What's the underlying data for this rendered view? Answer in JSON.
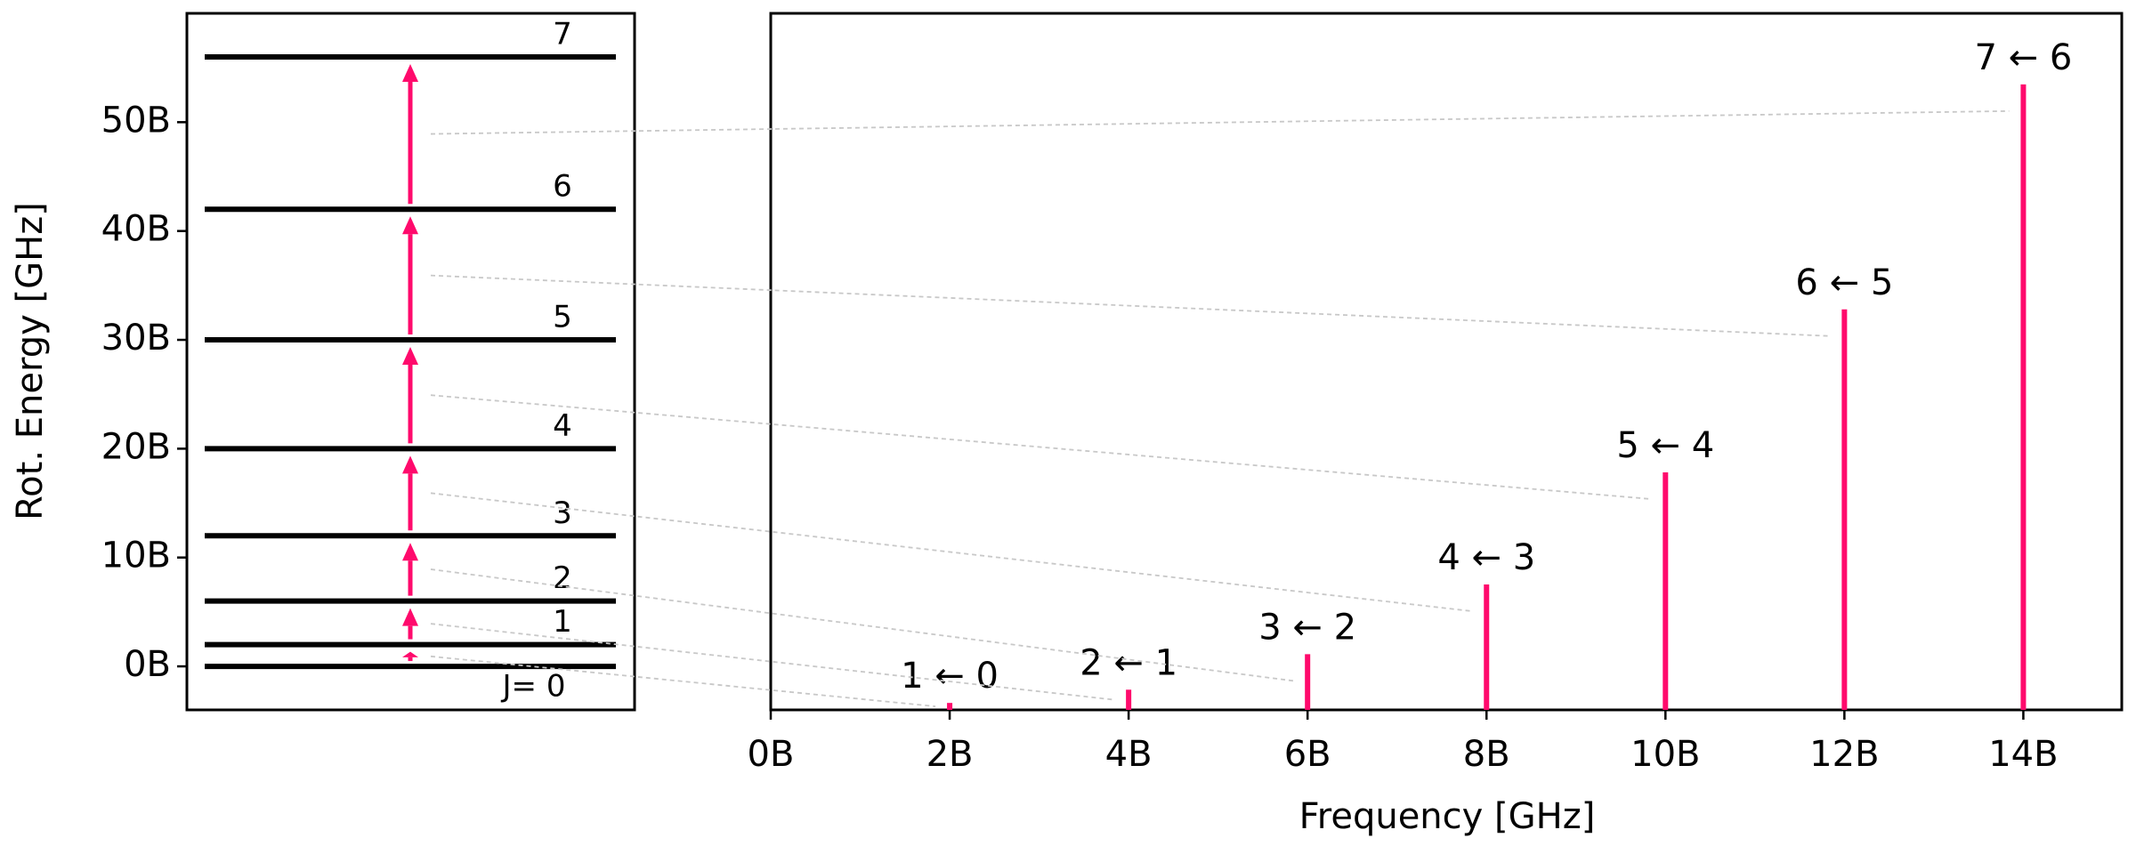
{
  "chart_data": [
    {
      "type": "levels",
      "ylabel": "Rot. Energy [GHz]",
      "color": "#000000",
      "arrow_color": "#ff0a6c",
      "values": [
        0,
        2,
        6,
        12,
        20,
        30,
        42,
        56
      ],
      "level_labels": [
        "J= 0",
        "1",
        "2",
        "3",
        "4",
        "5",
        "6",
        "7"
      ],
      "ylim": [
        -4,
        60
      ],
      "yticks": [
        {
          "value": 0,
          "label": "0B"
        },
        {
          "value": 10,
          "label": "10B"
        },
        {
          "value": 20,
          "label": "20B"
        },
        {
          "value": 30,
          "label": "30B"
        },
        {
          "value": 40,
          "label": "40B"
        },
        {
          "value": 50,
          "label": "50B"
        }
      ]
    },
    {
      "type": "stick",
      "xlabel": "Frequency [GHz]",
      "color": "#ff0a6c",
      "x": [
        2,
        4,
        6,
        8,
        10,
        12,
        14
      ],
      "values": [
        1.0,
        2.9,
        8.0,
        18.0,
        34.1,
        57.5,
        89.8
      ],
      "labels": [
        "1 ← 0",
        "2 ← 1",
        "3 ← 2",
        "4 ← 3",
        "5 ← 4",
        "6 ← 5",
        "7 ← 6"
      ],
      "xlim": [
        0,
        15.1
      ],
      "ylim": [
        0,
        100
      ],
      "xticks": [
        {
          "value": 0,
          "label": "0B"
        },
        {
          "value": 2,
          "label": "2B"
        },
        {
          "value": 4,
          "label": "4B"
        },
        {
          "value": 6,
          "label": "6B"
        },
        {
          "value": 8,
          "label": "8B"
        },
        {
          "value": 10,
          "label": "10B"
        },
        {
          "value": 12,
          "label": "12B"
        },
        {
          "value": 14,
          "label": "14B"
        }
      ]
    }
  ]
}
